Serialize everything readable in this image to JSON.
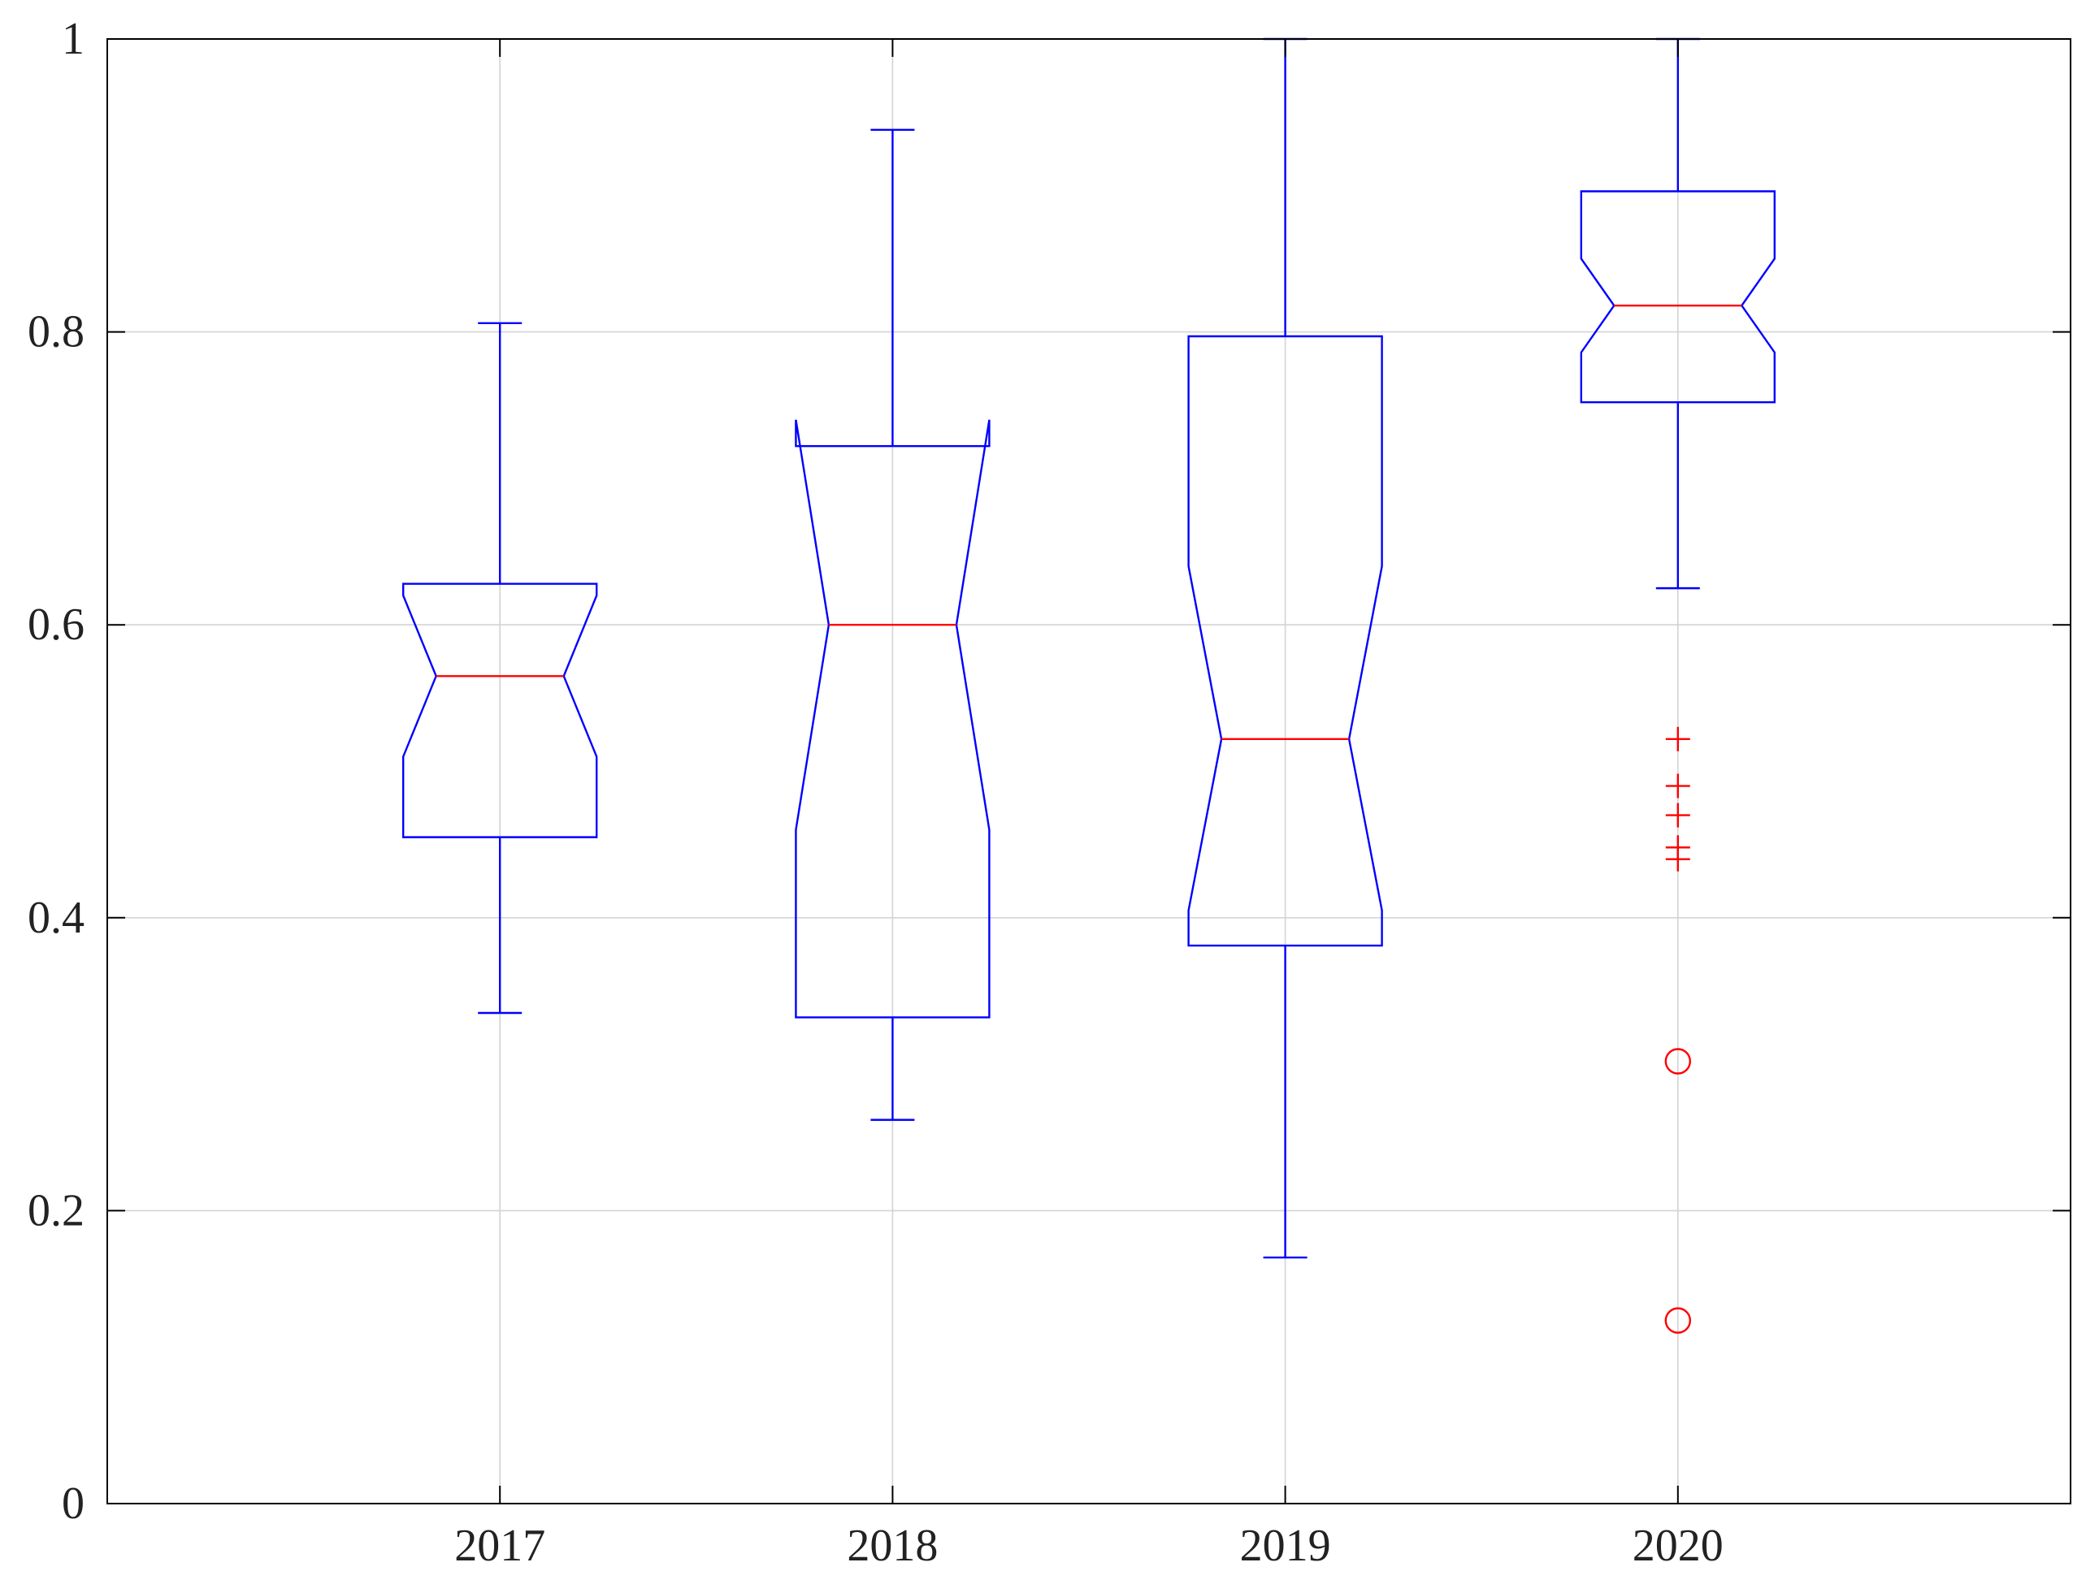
{
  "chart_data": {
    "type": "boxplot",
    "title": "",
    "xlabel": "",
    "ylabel": "",
    "notched": true,
    "grid": true,
    "ylim": [
      0,
      1
    ],
    "yticks": [
      0,
      0.2,
      0.4,
      0.6,
      0.8,
      1
    ],
    "ytick_labels": [
      "0",
      "0.2",
      "0.4",
      "0.6",
      "0.8",
      "1"
    ],
    "categories": [
      "2017",
      "2018",
      "2019",
      "2020"
    ],
    "colors": {
      "box": "#0000ff",
      "median": "#ff0000",
      "outlier": "#ff0000",
      "grid": "#d3d3d3",
      "axes": "#000000"
    },
    "boxes": [
      {
        "category": "2017",
        "whisker_low": 0.335,
        "q1": 0.455,
        "median": 0.565,
        "q3": 0.628,
        "whisker_high": 0.806,
        "notch_low": 0.51,
        "notch_high": 0.62,
        "outliers": []
      },
      {
        "category": "2018",
        "whisker_low": 0.262,
        "q1": 0.332,
        "median": 0.6,
        "q3": 0.722,
        "whisker_high": 0.938,
        "notch_low": 0.46,
        "notch_high": 0.74,
        "outliers": []
      },
      {
        "category": "2019",
        "whisker_low": 0.168,
        "q1": 0.381,
        "median": 0.522,
        "q3": 0.797,
        "whisker_high": 1.0,
        "notch_low": 0.405,
        "notch_high": 0.64,
        "outliers": []
      },
      {
        "category": "2020",
        "whisker_low": 0.625,
        "q1": 0.752,
        "median": 0.818,
        "q3": 0.896,
        "whisker_high": 1.0,
        "notch_low": 0.786,
        "notch_high": 0.85,
        "outliers": [
          {
            "value": 0.522,
            "marker": "plus"
          },
          {
            "value": 0.49,
            "marker": "plus"
          },
          {
            "value": 0.47,
            "marker": "plus"
          },
          {
            "value": 0.448,
            "marker": "plus"
          },
          {
            "value": 0.44,
            "marker": "plus"
          },
          {
            "value": 0.302,
            "marker": "circle"
          },
          {
            "value": 0.125,
            "marker": "circle"
          }
        ]
      }
    ]
  }
}
